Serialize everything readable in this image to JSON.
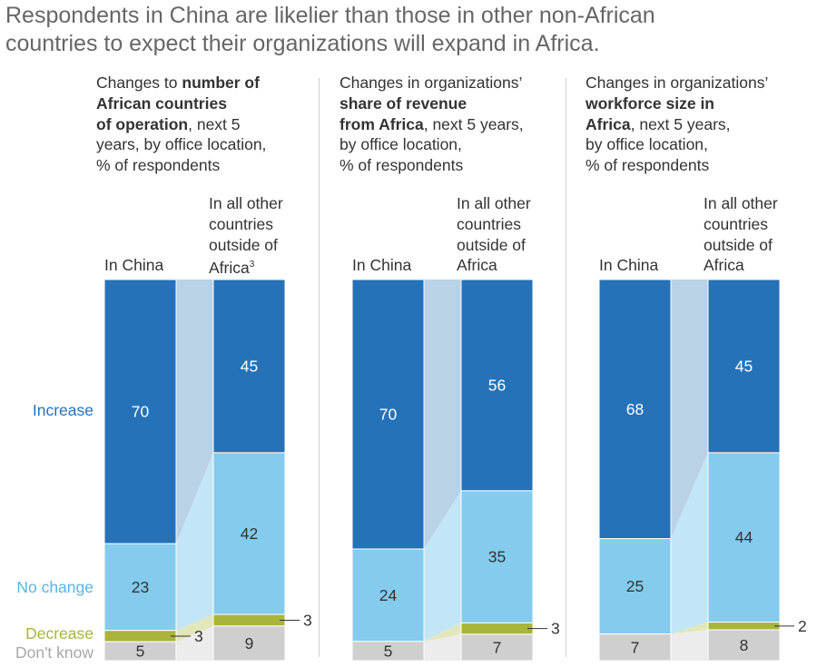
{
  "title_line1": "Respondents in China are likelier than those in other non-African",
  "title_line2": "countries to expect their organizations will expand in Africa.",
  "colors": {
    "increase": "#2672b8",
    "no_change": "#84cbee",
    "decrease": "#a9b53a",
    "dont_know": "#cfcfcf",
    "flow_increase": "#b9d2e6",
    "flow_no_change": "#c2e6f7",
    "flow_decrease": "#e3e6b8",
    "flow_dont_know": "#ececec"
  },
  "legend": {
    "increase": "Increase",
    "no_change": "No change",
    "decrease": "Decrease",
    "dont_know": "Don't know"
  },
  "panels": [
    {
      "title_lines": [
        [
          {
            "t": "Changes to ",
            "b": false
          },
          {
            "t": "number of",
            "b": true
          }
        ],
        [
          {
            "t": "African countries",
            "b": true
          }
        ],
        [
          {
            "t": "of operation",
            "b": true
          },
          {
            "t": ", next 5",
            "b": false
          }
        ],
        [
          {
            "t": "years, by office location,",
            "b": false
          }
        ],
        [
          {
            "t": "% of respondents",
            "b": false
          }
        ]
      ],
      "left_label": "In China",
      "right_label_lines": [
        "In all other",
        "countries",
        "outside of",
        "Africa"
      ],
      "right_label_sup": "3"
    },
    {
      "title_lines": [
        [
          {
            "t": "Changes in organizations’",
            "b": false
          }
        ],
        [
          {
            "t": "share of revenue",
            "b": true
          }
        ],
        [
          {
            "t": "from Africa",
            "b": true
          },
          {
            "t": ", next 5 years,",
            "b": false
          }
        ],
        [
          {
            "t": "by office location,",
            "b": false
          }
        ],
        [
          {
            "t": "% of respondents",
            "b": false
          }
        ]
      ],
      "left_label": "In China",
      "right_label_lines": [
        "In all other",
        "countries",
        "outside of",
        "Africa"
      ],
      "right_label_sup": ""
    },
    {
      "title_lines": [
        [
          {
            "t": "Changes in organizations’",
            "b": false
          }
        ],
        [
          {
            "t": "workforce size in",
            "b": true
          }
        ],
        [
          {
            "t": "Africa",
            "b": true
          },
          {
            "t": ", next 5 years,",
            "b": false
          }
        ],
        [
          {
            "t": "by office location,",
            "b": false
          }
        ],
        [
          {
            "t": "% of respondents",
            "b": false
          }
        ]
      ],
      "left_label": "In China",
      "right_label_lines": [
        "In all other",
        "countries",
        "outside of",
        "Africa"
      ],
      "right_label_sup": ""
    }
  ],
  "chart_data": [
    {
      "type": "bar",
      "stacked": true,
      "title": "Changes to number of African countries of operation, next 5 years, by office location, % of respondents",
      "categories": [
        "In China",
        "In all other countries outside of Africa"
      ],
      "series": [
        {
          "name": "Increase",
          "values": [
            70,
            45
          ]
        },
        {
          "name": "No change",
          "values": [
            23,
            42
          ]
        },
        {
          "name": "Decrease",
          "values": [
            3,
            3
          ]
        },
        {
          "name": "Don't know",
          "values": [
            5,
            9
          ]
        }
      ]
    },
    {
      "type": "bar",
      "stacked": true,
      "title": "Changes in organizations' share of revenue from Africa, next 5 years, by office location, % of respondents",
      "categories": [
        "In China",
        "In all other countries outside of Africa"
      ],
      "series": [
        {
          "name": "Increase",
          "values": [
            70,
            56
          ]
        },
        {
          "name": "No change",
          "values": [
            24,
            35
          ]
        },
        {
          "name": "Decrease",
          "values": [
            0,
            3
          ]
        },
        {
          "name": "Don't know",
          "values": [
            5,
            7
          ]
        }
      ]
    },
    {
      "type": "bar",
      "stacked": true,
      "title": "Changes in organizations' workforce size in Africa, next 5 years, by office location, % of respondents",
      "categories": [
        "In China",
        "In all other countries outside of Africa"
      ],
      "series": [
        {
          "name": "Increase",
          "values": [
            68,
            45
          ]
        },
        {
          "name": "No change",
          "values": [
            25,
            44
          ]
        },
        {
          "name": "Decrease",
          "values": [
            0,
            2
          ]
        },
        {
          "name": "Don't know",
          "values": [
            7,
            8
          ]
        }
      ]
    }
  ]
}
